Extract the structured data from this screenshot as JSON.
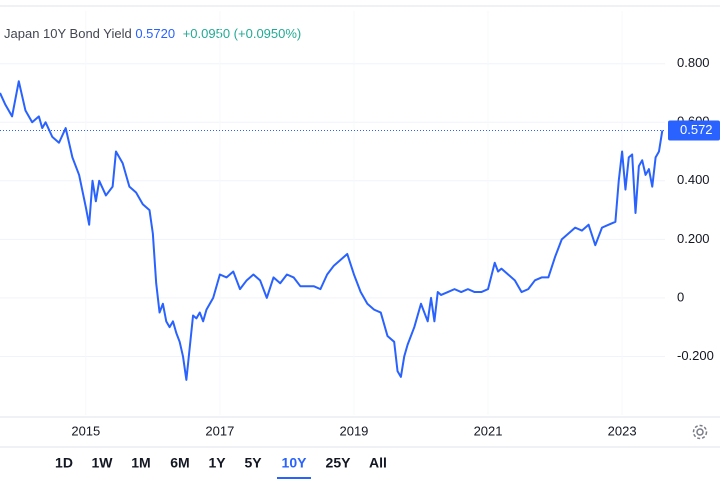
{
  "chart_data": {
    "type": "line",
    "title": "Japan 10Y Bond Yield",
    "last_price": "0.5720",
    "change": "+0.0950 (+0.0950%)",
    "last_value": 0.572,
    "series": [
      {
        "name": "Japan 10Y Bond Yield",
        "color": "#2962ff",
        "x": [
          2013.72,
          2013.8,
          2013.9,
          2014.0,
          2014.1,
          2014.2,
          2014.3,
          2014.35,
          2014.4,
          2014.5,
          2014.6,
          2014.7,
          2014.8,
          2014.9,
          2015.0,
          2015.05,
          2015.1,
          2015.15,
          2015.2,
          2015.3,
          2015.4,
          2015.45,
          2015.55,
          2015.65,
          2015.75,
          2015.85,
          2015.95,
          2016.0,
          2016.05,
          2016.1,
          2016.15,
          2016.2,
          2016.25,
          2016.3,
          2016.35,
          2016.4,
          2016.45,
          2016.5,
          2016.55,
          2016.6,
          2016.65,
          2016.7,
          2016.75,
          2016.8,
          2016.9,
          2017.0,
          2017.1,
          2017.2,
          2017.3,
          2017.4,
          2017.5,
          2017.6,
          2017.7,
          2017.8,
          2017.9,
          2018.0,
          2018.1,
          2018.2,
          2018.3,
          2018.4,
          2018.5,
          2018.6,
          2018.7,
          2018.8,
          2018.9,
          2019.0,
          2019.1,
          2019.2,
          2019.3,
          2019.4,
          2019.5,
          2019.6,
          2019.65,
          2019.7,
          2019.75,
          2019.8,
          2019.9,
          2020.0,
          2020.1,
          2020.15,
          2020.2,
          2020.25,
          2020.3,
          2020.4,
          2020.5,
          2020.6,
          2020.7,
          2020.8,
          2020.9,
          2021.0,
          2021.1,
          2021.15,
          2021.2,
          2021.3,
          2021.4,
          2021.5,
          2021.6,
          2021.7,
          2021.8,
          2021.9,
          2022.0,
          2022.1,
          2022.2,
          2022.3,
          2022.4,
          2022.5,
          2022.6,
          2022.7,
          2022.8,
          2022.9,
          2022.95,
          2023.0,
          2023.05,
          2023.1,
          2023.15,
          2023.2,
          2023.25,
          2023.3,
          2023.35,
          2023.4,
          2023.45,
          2023.5,
          2023.55,
          2023.6
        ],
        "values": [
          0.7,
          0.66,
          0.62,
          0.74,
          0.64,
          0.6,
          0.62,
          0.58,
          0.6,
          0.55,
          0.53,
          0.58,
          0.48,
          0.42,
          0.31,
          0.25,
          0.4,
          0.33,
          0.4,
          0.35,
          0.38,
          0.5,
          0.46,
          0.38,
          0.36,
          0.32,
          0.3,
          0.22,
          0.05,
          -0.05,
          -0.02,
          -0.08,
          -0.1,
          -0.08,
          -0.12,
          -0.15,
          -0.2,
          -0.28,
          -0.17,
          -0.06,
          -0.07,
          -0.05,
          -0.08,
          -0.04,
          0.0,
          0.08,
          0.07,
          0.09,
          0.03,
          0.06,
          0.08,
          0.06,
          0.0,
          0.07,
          0.05,
          0.08,
          0.07,
          0.04,
          0.04,
          0.04,
          0.03,
          0.08,
          0.11,
          0.13,
          0.15,
          0.08,
          0.02,
          -0.02,
          -0.04,
          -0.05,
          -0.13,
          -0.15,
          -0.25,
          -0.27,
          -0.2,
          -0.16,
          -0.1,
          -0.02,
          -0.08,
          0.0,
          -0.08,
          0.02,
          0.01,
          0.02,
          0.03,
          0.02,
          0.03,
          0.02,
          0.02,
          0.03,
          0.12,
          0.09,
          0.1,
          0.08,
          0.06,
          0.02,
          0.03,
          0.06,
          0.07,
          0.07,
          0.14,
          0.2,
          0.22,
          0.24,
          0.23,
          0.25,
          0.18,
          0.24,
          0.25,
          0.26,
          0.4,
          0.5,
          0.37,
          0.48,
          0.49,
          0.29,
          0.45,
          0.47,
          0.42,
          0.44,
          0.38,
          0.48,
          0.5,
          0.572
        ]
      }
    ],
    "xlim": [
      2013.72,
      2023.64
    ],
    "xticks": [
      2015,
      2017,
      2019,
      2021,
      2023
    ],
    "ylim": [
      -0.4,
      0.98
    ],
    "yticks": [
      {
        "value": -0.2,
        "label": "-0.200"
      },
      0,
      {
        "value": 0.2,
        "label": "0.200"
      },
      {
        "value": 0.4,
        "label": "0.400"
      },
      {
        "value": 0.6,
        "label": "0.600"
      },
      {
        "value": 0.8,
        "label": "0.800"
      }
    ],
    "grid": true
  },
  "range_buttons": [
    "1D",
    "1W",
    "1M",
    "6M",
    "1Y",
    "5Y",
    "10Y",
    "25Y",
    "All"
  ],
  "active_range": 6
}
